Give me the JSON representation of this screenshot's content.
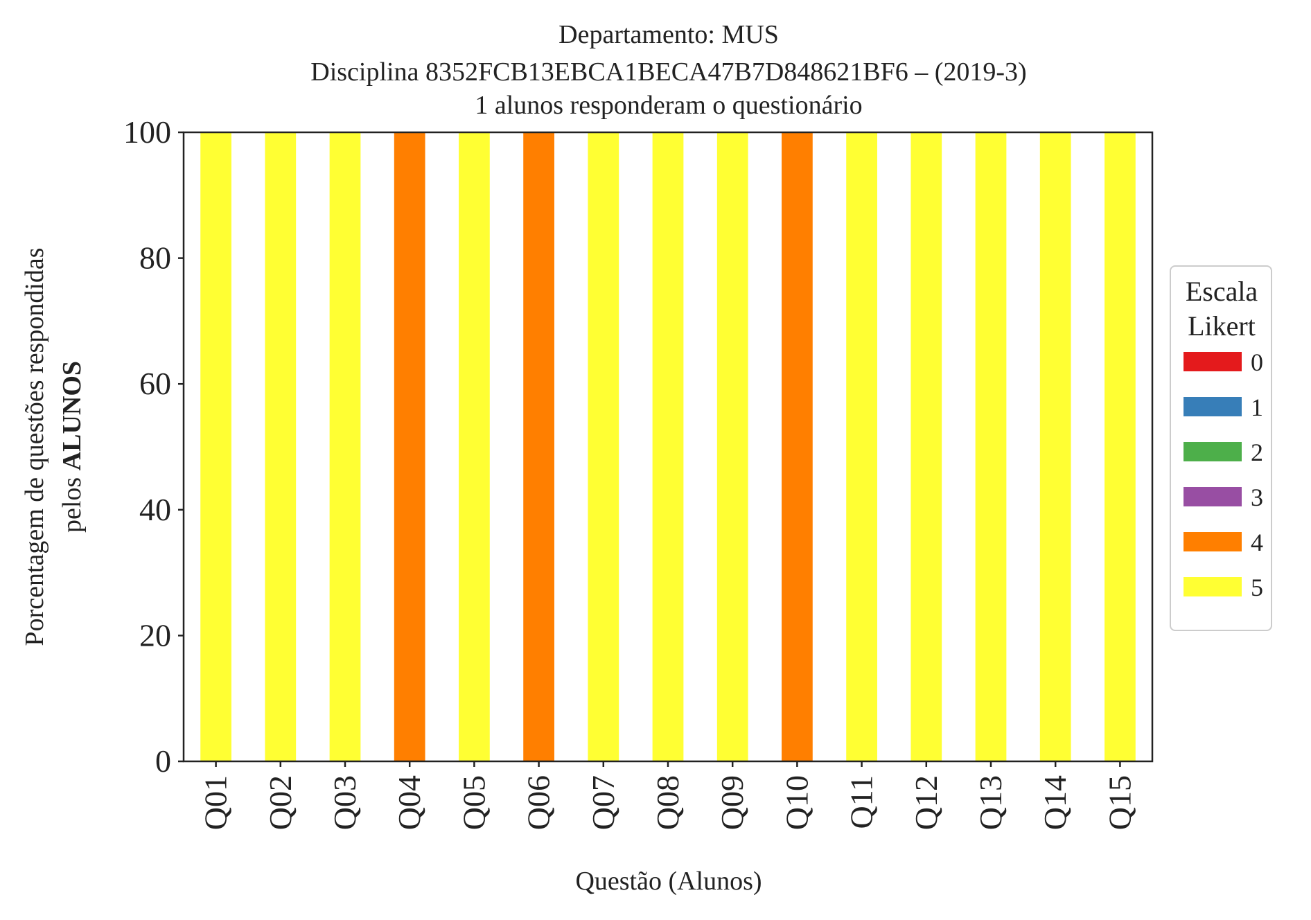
{
  "chart_data": {
    "type": "bar",
    "stacked": true,
    "title_lines": [
      "Departamento: MUS",
      "Disciplina 8352FCB13EBCA1BECA47B7D848621BF6 – (2019-3)",
      "1 alunos responderam o questionário"
    ],
    "xlabel": "Questão (Alunos)",
    "ylabel_line1": "Porcentagem de questões respondidas",
    "ylabel_line2_prefix": "pelos ",
    "ylabel_line2_bold": "ALUNOS",
    "ylim": [
      0,
      100
    ],
    "yticks": [
      0,
      20,
      40,
      60,
      80,
      100
    ],
    "categories": [
      "Q01",
      "Q02",
      "Q03",
      "Q04",
      "Q05",
      "Q06",
      "Q07",
      "Q08",
      "Q09",
      "Q10",
      "Q11",
      "Q12",
      "Q13",
      "Q14",
      "Q15"
    ],
    "series": [
      {
        "name": "0",
        "color": "#e41a1c",
        "values": [
          0,
          0,
          0,
          0,
          0,
          0,
          0,
          0,
          0,
          0,
          0,
          0,
          0,
          0,
          0
        ]
      },
      {
        "name": "1",
        "color": "#377eb8",
        "values": [
          0,
          0,
          0,
          0,
          0,
          0,
          0,
          0,
          0,
          0,
          0,
          0,
          0,
          0,
          0
        ]
      },
      {
        "name": "2",
        "color": "#4daf4a",
        "values": [
          0,
          0,
          0,
          0,
          0,
          0,
          0,
          0,
          0,
          0,
          0,
          0,
          0,
          0,
          0
        ]
      },
      {
        "name": "3",
        "color": "#984ea3",
        "values": [
          0,
          0,
          0,
          0,
          0,
          0,
          0,
          0,
          0,
          0,
          0,
          0,
          0,
          0,
          0
        ]
      },
      {
        "name": "4",
        "color": "#ff7f00",
        "values": [
          0,
          0,
          0,
          100,
          0,
          100,
          0,
          0,
          0,
          100,
          0,
          0,
          0,
          0,
          0
        ]
      },
      {
        "name": "5",
        "color": "#ffff33",
        "values": [
          100,
          100,
          100,
          0,
          100,
          0,
          100,
          100,
          100,
          0,
          100,
          100,
          100,
          100,
          100
        ]
      }
    ],
    "legend": {
      "title_lines": [
        "Escala",
        "Likert"
      ],
      "placement": "right"
    },
    "grid": false
  }
}
